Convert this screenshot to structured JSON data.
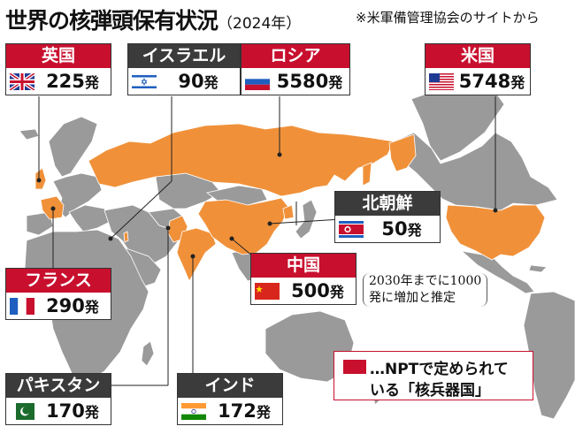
{
  "title": "世界の核弾頭保有状況",
  "year": "（2024年）",
  "source": "※米軍備管理協会のサイトから",
  "countries": {
    "uk": {
      "name": "英国",
      "count": "225",
      "unit": "発"
    },
    "israel": {
      "name": "イスラエル",
      "count": "90",
      "unit": "発"
    },
    "russia": {
      "name": "ロシア",
      "count": "5580",
      "unit": "発"
    },
    "usa": {
      "name": "米国",
      "count": "5748",
      "unit": "発"
    },
    "nkorea": {
      "name": "北朝鮮",
      "count": "50",
      "unit": "発"
    },
    "china": {
      "name": "中国",
      "count": "500",
      "unit": "発"
    },
    "france": {
      "name": "フランス",
      "count": "290",
      "unit": "発"
    },
    "pakistan": {
      "name": "パキスタン",
      "count": "170",
      "unit": "発"
    },
    "india": {
      "name": "インド",
      "count": "172",
      "unit": "発"
    }
  },
  "china_note": {
    "line1": "2030年までに1000",
    "line2": "発に増加と推定"
  },
  "legend": {
    "line1": "…NPTで定められて",
    "line2": "いる「核兵器国」"
  },
  "colors": {
    "nuclear_state": "#f0913a",
    "other_land": "#9a9a9a",
    "ocean": "#ffffff",
    "header_red": "#c8102e",
    "header_dark": "#3b3b3b"
  }
}
